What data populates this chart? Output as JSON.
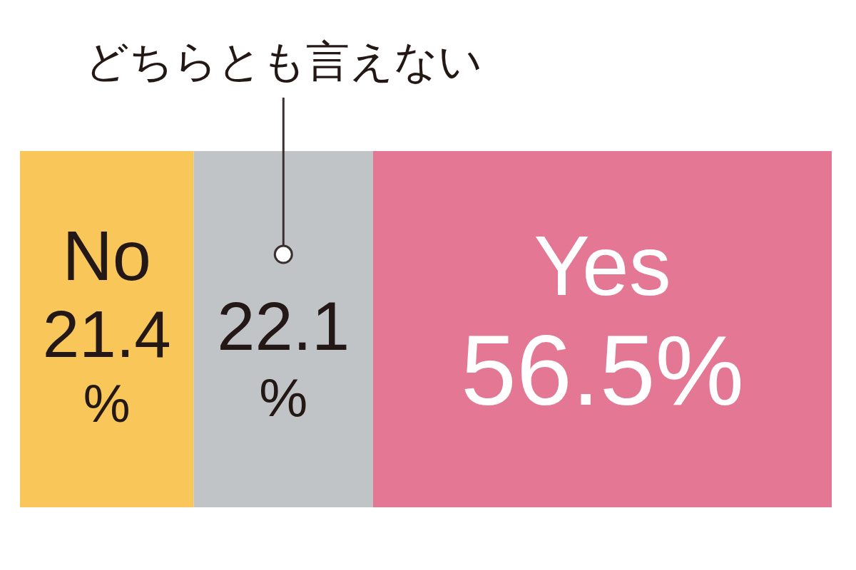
{
  "chart_data": {
    "type": "bar",
    "orientation": "horizontal",
    "stacked": true,
    "categories": [
      null
    ],
    "xlim": [
      0,
      100
    ],
    "tick_labels": false,
    "series": [
      {
        "name": "No",
        "color": "#f9c65a",
        "values": [
          21.4
        ],
        "value_labels": [
          "21.4 %"
        ]
      },
      {
        "name": "どちらとも言えない",
        "color": "#c0c4c7",
        "values": [
          22.1
        ],
        "value_labels": [
          "22.1 %"
        ]
      },
      {
        "name": "Yes",
        "color": "#e47793",
        "values": [
          56.5
        ],
        "value_labels": [
          "56.5%"
        ]
      }
    ]
  }
}
